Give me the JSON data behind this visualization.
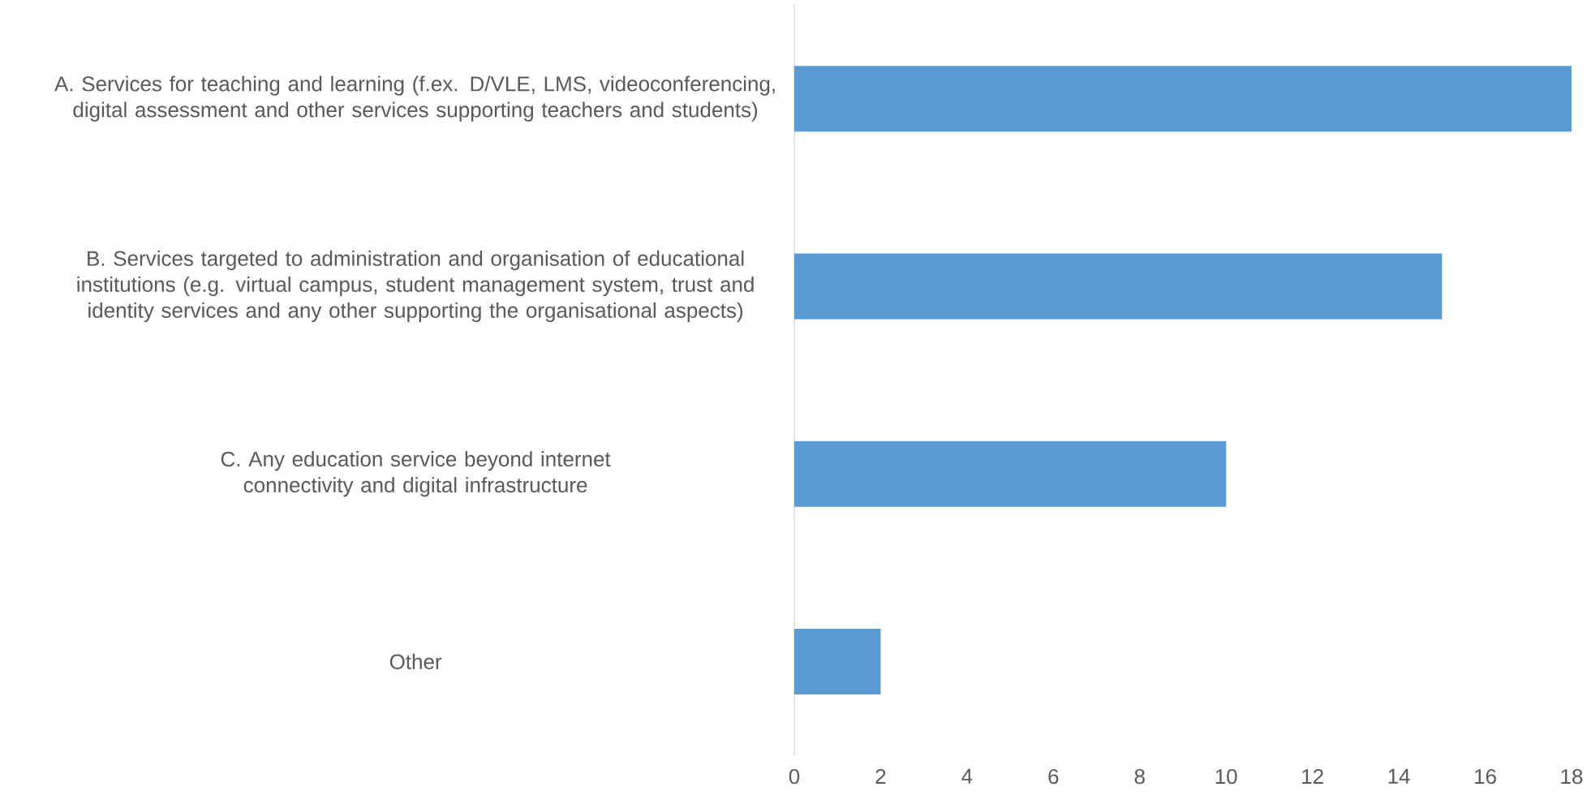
{
  "chart_data": {
    "type": "bar",
    "orientation": "horizontal",
    "categories": [
      "A. Services for teaching and learning (f.ex. D/VLE, LMS, videoconferencing, digital assessment and other services supporting teachers and students)",
      "B. Services targeted to administration and organisation of educational institutions (e.g. virtual campus, student management system, trust and identity services and any other supporting the organisational aspects)",
      "C. Any education service beyond internet connectivity and digital infrastructure",
      "Other"
    ],
    "values": [
      18,
      15,
      10,
      2
    ],
    "color": "#5b9bd5",
    "xlim": [
      0,
      18
    ],
    "xticks": [
      0,
      2,
      4,
      6,
      8,
      10,
      12,
      14,
      16,
      18
    ]
  }
}
